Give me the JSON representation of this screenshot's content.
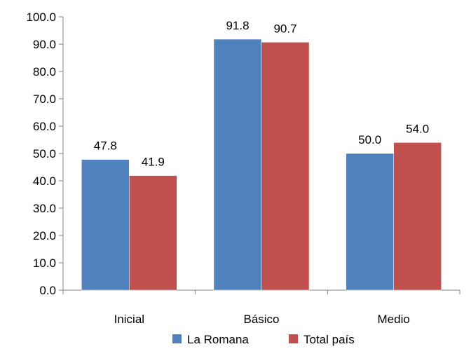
{
  "chart_data": {
    "type": "bar",
    "categories": [
      "Inicial",
      "Básico",
      "Medio"
    ],
    "series": [
      {
        "name": "La Romana",
        "values": [
          47.8,
          91.8,
          50.0
        ],
        "color": "#4F81BD"
      },
      {
        "name": "Total país",
        "values": [
          41.9,
          90.7,
          54.0
        ],
        "color": "#C0504D"
      }
    ],
    "title": "",
    "xlabel": "",
    "ylabel": "",
    "ylim": [
      0,
      100
    ],
    "yticks": [
      0,
      10,
      20,
      30,
      40,
      50,
      60,
      70,
      80,
      90,
      100
    ],
    "tick_format_decimals": 1,
    "grid": false,
    "legend": "bottom-center"
  }
}
